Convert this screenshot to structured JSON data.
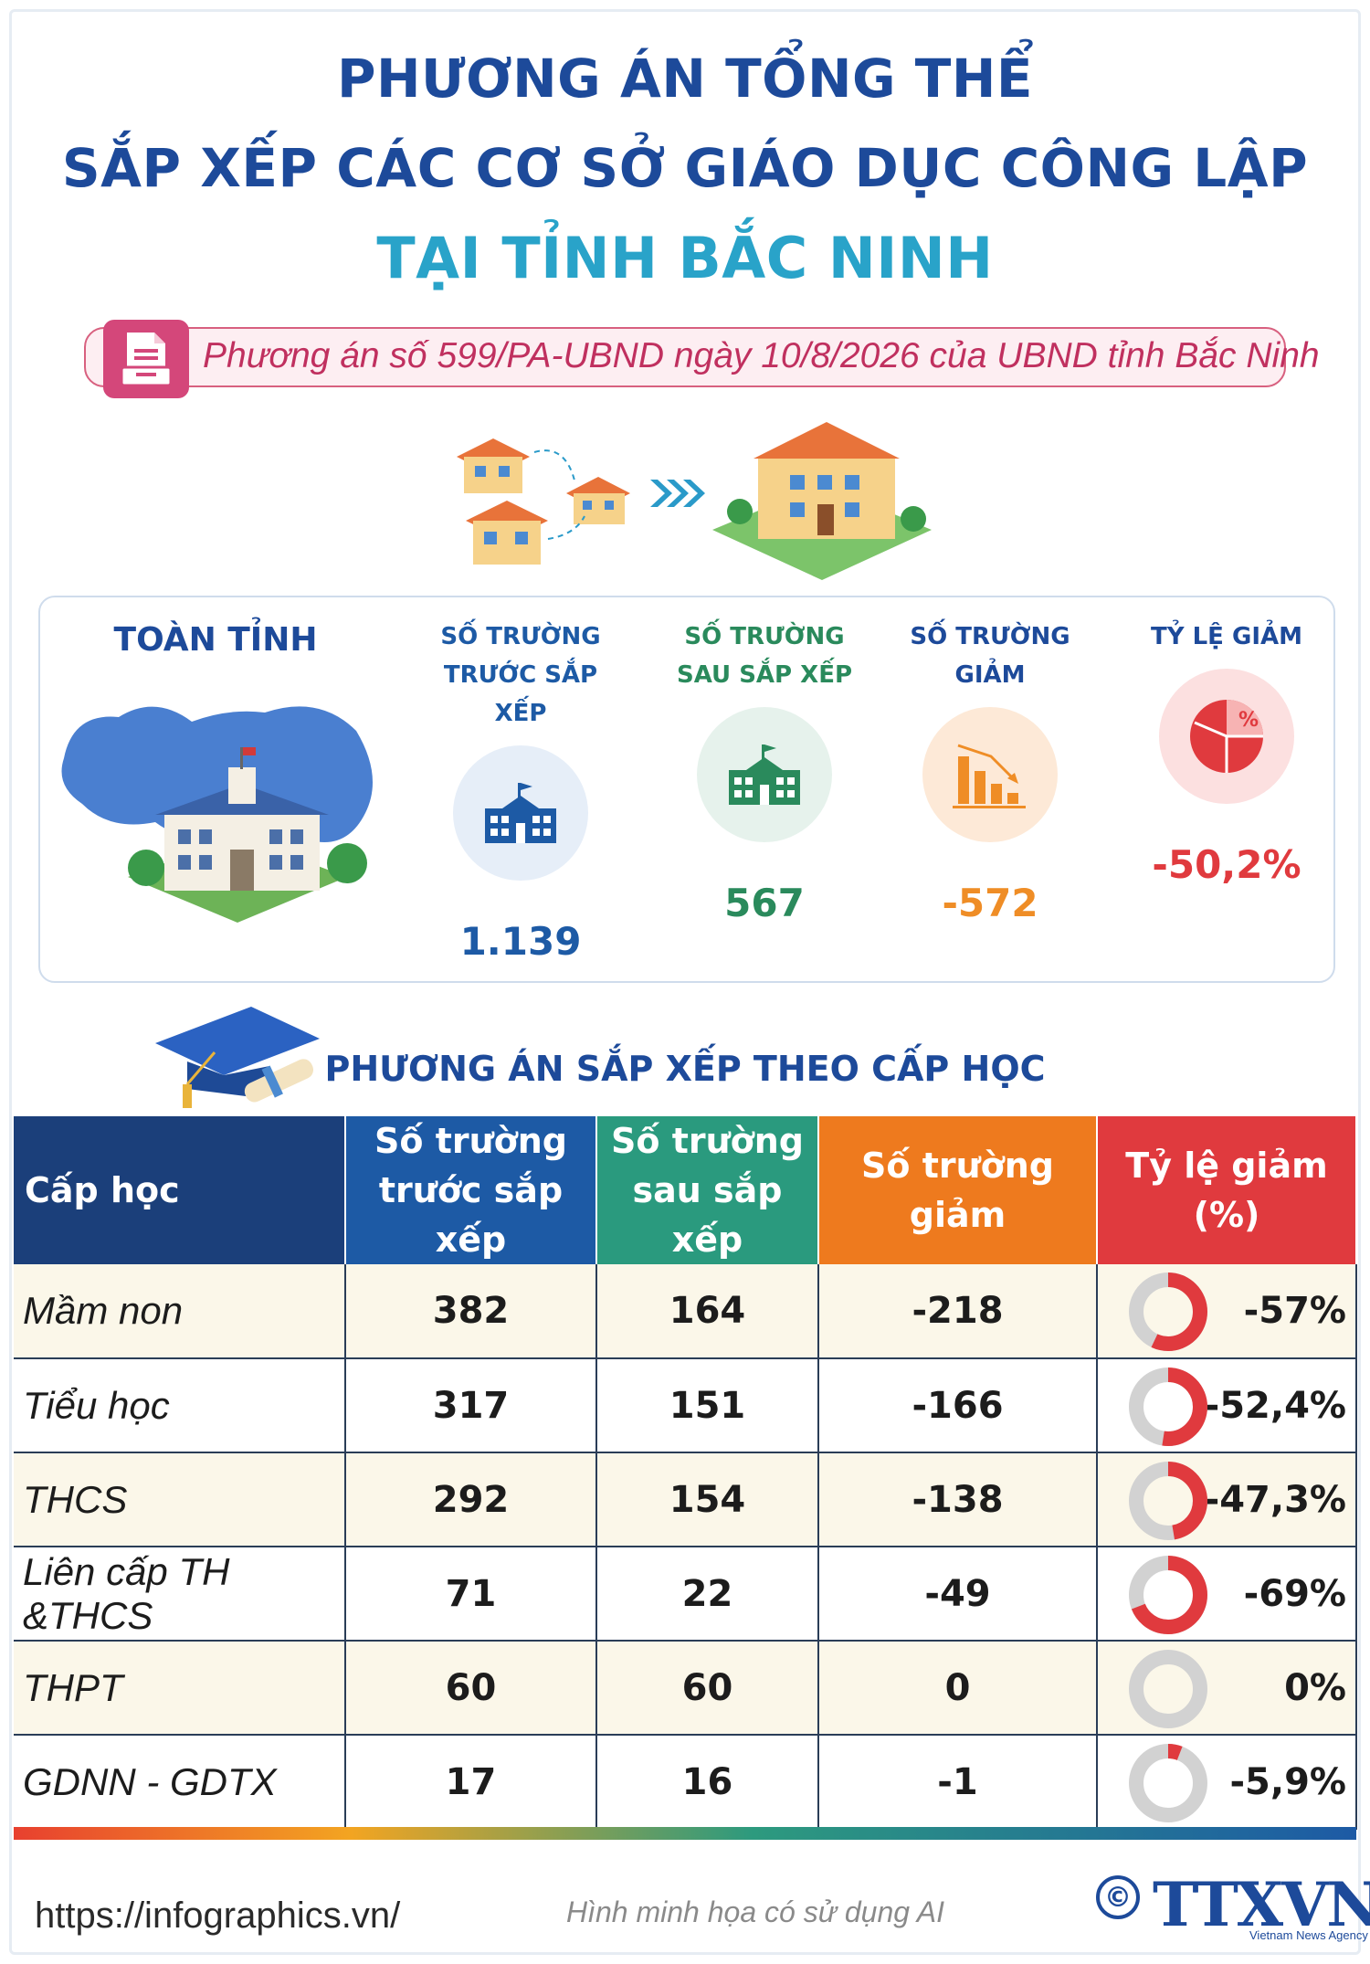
{
  "title": {
    "line1": "PHƯƠNG ÁN TỔNG THỂ",
    "line2": "SẮP XẾP CÁC CƠ SỞ GIÁO DỤC CÔNG LẬP",
    "line3": "TẠI TỈNH BẮC NINH"
  },
  "reference": {
    "icon": "document-icon",
    "text": "Phương án số 599/PA-UBND ngày 10/8/2026 của UBND tỉnh Bắc Ninh"
  },
  "summary": {
    "region_label": "TOÀN TỈNH",
    "stats": [
      {
        "line1": "SỐ TRƯỜNG",
        "line2": "TRƯỚC SẮP XẾP",
        "value": "1.139",
        "color": "#1d5aa5",
        "bg": "#e6eef8",
        "icon": "school-icon"
      },
      {
        "line1": "SỐ TRƯỜNG",
        "line2": "SAU SẮP XẾP",
        "value": "567",
        "color": "#2a8a5c",
        "bg": "#e6f2ec",
        "icon": "school-icon"
      },
      {
        "line1": "",
        "line2": "SỐ TRƯỜNG GIẢM",
        "value": "-572",
        "color": "#ef8d26",
        "bg": "#fde9d7",
        "icon": "bar-chart-down-icon"
      },
      {
        "line1": "",
        "line2": "TỶ LỆ GIẢM",
        "value": "-50,2%",
        "color": "#e03a3e",
        "bg": "#fce0e0",
        "icon": "pie-chart-percent-icon"
      }
    ]
  },
  "section_title": "PHƯƠNG ÁN SẮP XẾP THEO CẤP HỌC",
  "table": {
    "headers": [
      {
        "line1": "Cấp học",
        "line2": "",
        "bg": "#1b3f7a"
      },
      {
        "line1": "Số trường",
        "line2": "trước sắp xếp",
        "bg": "#1d5aa5"
      },
      {
        "line1": "Số trường",
        "line2": "sau sắp xếp",
        "bg": "#2a9a7e"
      },
      {
        "line1": "Số trường giảm",
        "line2": "",
        "bg": "#ee7a1e"
      },
      {
        "line1": "Tỷ lệ giảm (%)",
        "line2": "",
        "bg": "#e03a3e"
      }
    ],
    "rows": [
      {
        "name": "Mầm non",
        "before": "382",
        "after": "164",
        "decrease": "-218",
        "rate": "-57%",
        "rate_value": 57
      },
      {
        "name": "Tiểu học",
        "before": "317",
        "after": "151",
        "decrease": "-166",
        "rate": "-52,4%",
        "rate_value": 52.4
      },
      {
        "name": "THCS",
        "before": "292",
        "after": "154",
        "decrease": "-138",
        "rate": "-47,3%",
        "rate_value": 47.3
      },
      {
        "name": "Liên cấp TH &THCS",
        "before": "71",
        "after": "22",
        "decrease": "-49",
        "rate": "-69%",
        "rate_value": 69
      },
      {
        "name": "THPT",
        "before": "60",
        "after": "60",
        "decrease": "0",
        "rate": "0%",
        "rate_value": 0
      },
      {
        "name": "GDNN - GDTX",
        "before": "17",
        "after": "16",
        "decrease": "-1",
        "rate": "-5,9%",
        "rate_value": 5.9
      }
    ]
  },
  "footer": {
    "url": "https://infographics.vn/",
    "note": "Hình minh họa có sử dụng AI",
    "copyright_symbol": "©",
    "logo": "TTXVN",
    "logo_sub": "Vietnam News Agency"
  }
}
